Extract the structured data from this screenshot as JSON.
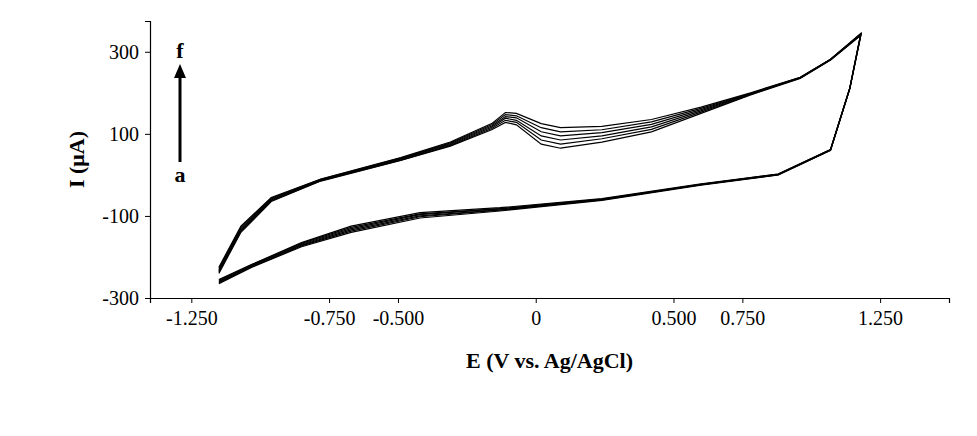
{
  "chart_data": {
    "type": "line",
    "x_label": "E (V vs. Ag/AgCl)",
    "y_label": "I (μA)",
    "annotations": [
      "f",
      "a"
    ],
    "marker": "none",
    "line_style": "solid",
    "grid": false,
    "xlim": [
      -1.4,
      1.5
    ],
    "xticks": [
      {
        "value": -1.25,
        "label": "-1.250"
      },
      {
        "value": -0.75,
        "label": "-0.750"
      },
      {
        "value": -0.5,
        "label": "-0.500"
      },
      0,
      {
        "value": 0.5,
        "label": "0.500"
      },
      {
        "value": 0.75,
        "label": "0.750"
      },
      {
        "value": 1.25,
        "label": "1.250"
      }
    ],
    "ylim": [
      -300,
      375
    ],
    "yticks": [
      -300,
      -100,
      100,
      300
    ],
    "x": [
      -1.15,
      -1.07,
      -0.96,
      -0.78,
      -0.49,
      -0.31,
      -0.16,
      -0.11,
      -0.07,
      0.02,
      0.09,
      0.24,
      0.42,
      0.6,
      0.78,
      0.96,
      1.07,
      1.18,
      1.14,
      1.07,
      0.88,
      0.6,
      0.24,
      -0.13,
      -0.42,
      -0.67,
      -0.85,
      -1.03,
      -1.15
    ],
    "series": [
      {
        "color": "#000000",
        "values": [
          -240,
          -140,
          -65,
          -15,
          35,
          70,
          110,
          128,
          122,
          75,
          65,
          80,
          105,
          150,
          195,
          235,
          280,
          340,
          210,
          60,
          0,
          -25,
          -62,
          -88,
          -105,
          -140,
          -175,
          -225,
          -265
        ]
      },
      {
        "color": "#000000",
        "values": [
          -237,
          -137,
          -63,
          -14,
          36,
          72,
          113,
          133,
          128,
          85,
          75,
          88,
          111,
          153,
          196,
          236,
          280,
          341,
          210,
          60,
          0,
          -24,
          -61,
          -86,
          -102,
          -137,
          -173,
          -224,
          -263
        ]
      },
      {
        "color": "#000000",
        "values": [
          -234,
          -134,
          -61,
          -13,
          38,
          74,
          116,
          138,
          133,
          95,
          85,
          95,
          117,
          156,
          197,
          236,
          281,
          342,
          211,
          61,
          1,
          -24,
          -60,
          -85,
          -100,
          -134,
          -171,
          -222,
          -261
        ]
      },
      {
        "color": "#000000",
        "values": [
          -231,
          -131,
          -59,
          -12,
          39,
          76,
          119,
          142,
          139,
          105,
          95,
          103,
          123,
          159,
          198,
          237,
          281,
          343,
          211,
          61,
          1,
          -23,
          -60,
          -83,
          -97,
          -131,
          -169,
          -221,
          -259
        ]
      },
      {
        "color": "#000000",
        "values": [
          -228,
          -128,
          -57,
          -11,
          41,
          78,
          122,
          147,
          144,
          115,
          105,
          110,
          129,
          162,
          199,
          237,
          282,
          344,
          212,
          62,
          2,
          -23,
          -59,
          -82,
          -95,
          -128,
          -167,
          -219,
          -257
        ]
      },
      {
        "color": "#000000",
        "values": [
          -225,
          -125,
          -55,
          -10,
          42,
          80,
          125,
          152,
          150,
          125,
          115,
          118,
          135,
          165,
          200,
          238,
          282,
          345,
          212,
          62,
          2,
          -22,
          -58,
          -80,
          -92,
          -125,
          -165,
          -218,
          -255
        ]
      }
    ]
  }
}
